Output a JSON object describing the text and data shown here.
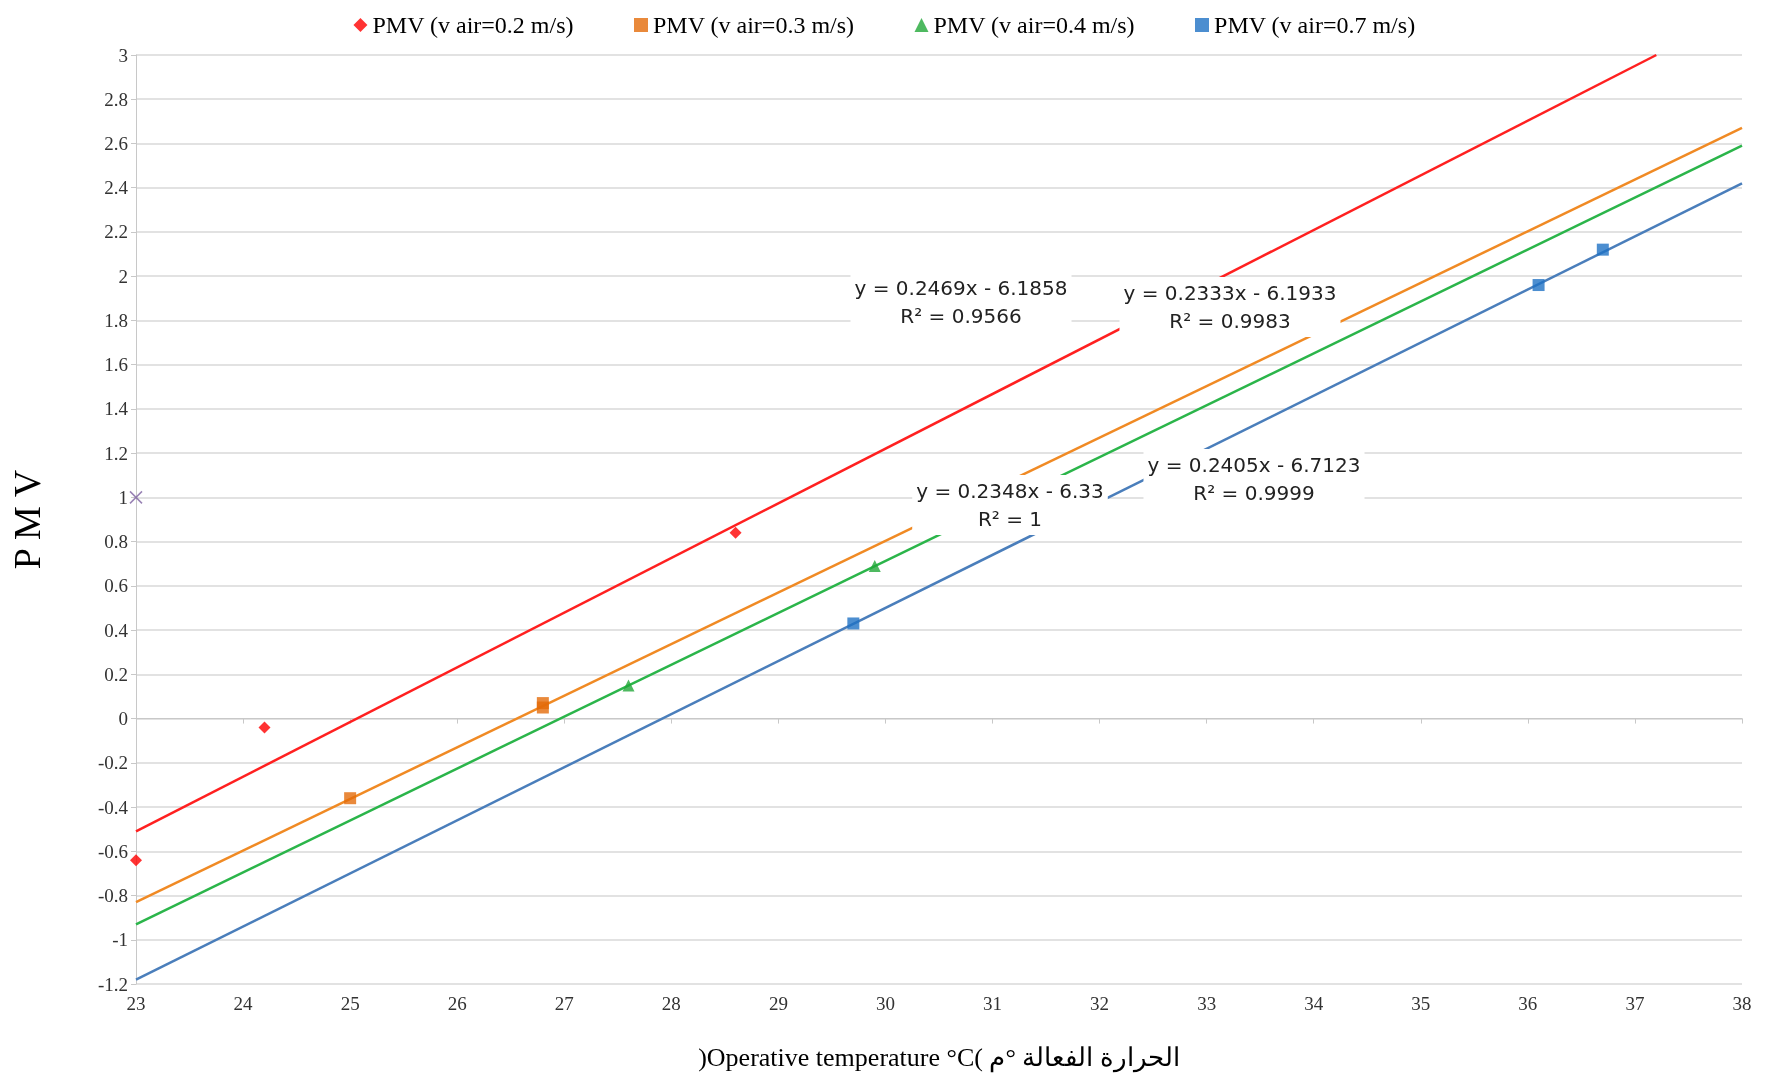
{
  "chart_data": {
    "type": "scatter",
    "xlabel": ")Operative temperature °C( الحرارة الفعالة °م",
    "ylabel": "P M V",
    "xlim": [
      23,
      38
    ],
    "xticks": [
      23,
      24,
      25,
      26,
      27,
      28,
      29,
      30,
      31,
      32,
      33,
      34,
      35,
      36,
      37,
      38
    ],
    "ylim": [
      -1.2,
      3
    ],
    "yticks": [
      -1.2,
      -1,
      -0.8,
      -0.6,
      -0.4,
      -0.2,
      0,
      0.2,
      0.4,
      0.6,
      0.8,
      1,
      1.2,
      1.4,
      1.6,
      1.8,
      2,
      2.2,
      2.4,
      2.6,
      2.8,
      3
    ],
    "grid": "y",
    "legend": "top",
    "series": [
      {
        "name": "PMV (v air=0.2 m/s)",
        "marker": "diamond",
        "color": "#ff0000",
        "x": [
          23,
          24.2,
          28.6
        ],
        "values": [
          -0.64,
          -0.04,
          0.84
        ]
      },
      {
        "name": "PMV (v air=0.3 m/s)",
        "marker": "square",
        "color": "#e46c0a",
        "x": [
          25,
          26.8,
          26.8
        ],
        "values": [
          -0.36,
          0.05,
          0.07
        ]
      },
      {
        "name": "PMV (v air=0.4 m/s)",
        "marker": "triangle",
        "color": "#22a838",
        "x": [
          27.6,
          29.9
        ],
        "values": [
          0.15,
          0.69
        ]
      },
      {
        "name": "PMV (v air=0.7 m/s)",
        "marker": "square",
        "color": "#1f72c4",
        "x": [
          29.7,
          36.1,
          36.7
        ],
        "values": [
          0.43,
          1.96,
          2.12
        ]
      },
      {
        "marker": "cross",
        "color": "#8064a2",
        "x": [
          23
        ],
        "values": [
          1
        ]
      },
      {
        "type": "line",
        "marker": "none",
        "color": "#ff2020",
        "x": [
          23,
          37.2
        ],
        "values": [
          -0.51,
          3
        ]
      },
      {
        "type": "line",
        "marker": "none",
        "color": "#f08a24",
        "x": [
          23,
          38
        ],
        "values": [
          -0.83,
          2.67
        ]
      },
      {
        "type": "line",
        "marker": "none",
        "color": "#2bb54a",
        "x": [
          23,
          38
        ],
        "values": [
          -0.93,
          2.59
        ]
      },
      {
        "type": "line",
        "marker": "none",
        "color": "#4a7ebb",
        "x": [
          23,
          38
        ],
        "values": [
          -1.18,
          2.42
        ]
      }
    ],
    "annotations": [
      "y = 0.2469x - 6.1858\nR² = 0.9566",
      "y = 0.2333x - 6.1933\nR² = 0.9983",
      "y = 0.2348x - 6.33\nR² = 1",
      "y = 0.2405x - 6.7123\nR² = 0.9999"
    ]
  }
}
